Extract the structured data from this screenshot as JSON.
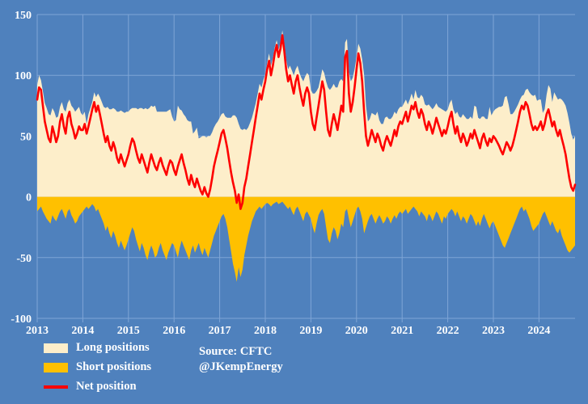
{
  "legend": {
    "items": [
      {
        "label": "Long positions",
        "color": "#fdeeca",
        "type": "area"
      },
      {
        "label": "Short positions",
        "color": "#ffc000",
        "type": "area"
      },
      {
        "label": "Net position",
        "color": "#fe0000",
        "type": "line"
      }
    ]
  },
  "source": {
    "line1": "Source: CFTC",
    "line2": "@JKempEnergy"
  },
  "chart_data": {
    "type": "area",
    "title": "",
    "xlabel": "",
    "ylabel": "",
    "x_start_year": 2013,
    "points_per_year": 24,
    "x_tick_labels": [
      "2013",
      "2014",
      "2015",
      "2016",
      "2017",
      "2018",
      "2019",
      "2020",
      "2021",
      "2022",
      "2023",
      "2024"
    ],
    "ylim": [
      -100,
      150
    ],
    "y_ticks": [
      -100,
      -50,
      0,
      50,
      100,
      150
    ],
    "background_color": "#4f81bd",
    "gridline_color": "#7fa5d6",
    "legend_position": "bottom-left",
    "grid": true,
    "series": [
      {
        "name": "Long positions",
        "color": "#fdeeca",
        "values": [
          92,
          100,
          96,
          87,
          77,
          73,
          68,
          67,
          73,
          70,
          65,
          66,
          74,
          78,
          72,
          70,
          77,
          80,
          75,
          73,
          70,
          72,
          74,
          69,
          67,
          70,
          60,
          68,
          73,
          78,
          86,
          82,
          85,
          82,
          78,
          74,
          73,
          74,
          72,
          72,
          73,
          72,
          70,
          70,
          71,
          70,
          69,
          70,
          70,
          72,
          73,
          73,
          73,
          72,
          73,
          73,
          72,
          73,
          72,
          73,
          75,
          74,
          75,
          70,
          70,
          70,
          70,
          70,
          70,
          71,
          72,
          66,
          62,
          63,
          75,
          72,
          71,
          68,
          66,
          63,
          62,
          62,
          52,
          54,
          57,
          48,
          49,
          50,
          50,
          49,
          50,
          50,
          53,
          57,
          60,
          62,
          65,
          68,
          69,
          66,
          65,
          65,
          65,
          67,
          67,
          65,
          60,
          56,
          55,
          56,
          55,
          57,
          61,
          65,
          71,
          77,
          85,
          93,
          90,
          96,
          101,
          110,
          118,
          108,
          114,
          123,
          129,
          121,
          127,
          137,
          126,
          113,
          105,
          108,
          104,
          100,
          105,
          108,
          102,
          98,
          95,
          99,
          102,
          100,
          88,
          85,
          85,
          87,
          90,
          97,
          105,
          102,
          95,
          90,
          88,
          90,
          93,
          90,
          90,
          95,
          97,
          95,
          127,
          130,
          103,
          95,
          98,
          105,
          115,
          126,
          122,
          113,
          100,
          75,
          62,
          64,
          69,
          68,
          67,
          70,
          63,
          60,
          60,
          65,
          66,
          64,
          64,
          66,
          70,
          68,
          72,
          74,
          74,
          77,
          80,
          76,
          80,
          85,
          80,
          88,
          82,
          81,
          84,
          82,
          76,
          75,
          76,
          74,
          72,
          74,
          77,
          74,
          73,
          72,
          71,
          70,
          72,
          77,
          80,
          72,
          68,
          70,
          66,
          65,
          68,
          66,
          64,
          64,
          66,
          64,
          75,
          74,
          65,
          64,
          66,
          66,
          64,
          64,
          74,
          67,
          70,
          72,
          73,
          74,
          74,
          75,
          82,
          83,
          76,
          68,
          68,
          70,
          73,
          76,
          80,
          83,
          84,
          88,
          89,
          86,
          84,
          83,
          84,
          79,
          80,
          80,
          69,
          72,
          84,
          92,
          89,
          78,
          86,
          83,
          80,
          81,
          80,
          78,
          75,
          69,
          61,
          52,
          47,
          50
        ]
      },
      {
        "name": "Short positions",
        "color": "#ffc000",
        "values": [
          -12,
          -10,
          -8,
          -12,
          -15,
          -18,
          -20,
          -22,
          -15,
          -18,
          -20,
          -16,
          -12,
          -10,
          -14,
          -18,
          -12,
          -10,
          -15,
          -18,
          -22,
          -20,
          -16,
          -14,
          -12,
          -10,
          -8,
          -10,
          -8,
          -6,
          -8,
          -12,
          -10,
          -14,
          -18,
          -22,
          -28,
          -24,
          -30,
          -34,
          -28,
          -32,
          -38,
          -42,
          -36,
          -40,
          -44,
          -40,
          -35,
          -30,
          -25,
          -28,
          -35,
          -40,
          -45,
          -38,
          -42,
          -48,
          -52,
          -45,
          -40,
          -44,
          -50,
          -48,
          -42,
          -38,
          -44,
          -48,
          -52,
          -46,
          -42,
          -38,
          -40,
          -45,
          -50,
          -42,
          -36,
          -40,
          -44,
          -48,
          -52,
          -44,
          -40,
          -46,
          -42,
          -38,
          -44,
          -48,
          -42,
          -46,
          -50,
          -44,
          -38,
          -32,
          -28,
          -24,
          -20,
          -16,
          -14,
          -18,
          -25,
          -35,
          -45,
          -55,
          -62,
          -70,
          -58,
          -66,
          -60,
          -48,
          -40,
          -32,
          -26,
          -20,
          -16,
          -12,
          -10,
          -8,
          -10,
          -8,
          -6,
          -5,
          -6,
          -8,
          -6,
          -5,
          -4,
          -6,
          -5,
          -4,
          -6,
          -8,
          -10,
          -8,
          -12,
          -15,
          -10,
          -8,
          -12,
          -16,
          -20,
          -14,
          -12,
          -15,
          -18,
          -25,
          -30,
          -22,
          -15,
          -12,
          -10,
          -14,
          -25,
          -35,
          -38,
          -30,
          -25,
          -28,
          -35,
          -30,
          -22,
          -25,
          -12,
          -10,
          -18,
          -25,
          -20,
          -15,
          -10,
          -8,
          -12,
          -18,
          -30,
          -25,
          -20,
          -16,
          -14,
          -18,
          -22,
          -18,
          -15,
          -18,
          -22,
          -20,
          -16,
          -18,
          -22,
          -18,
          -15,
          -18,
          -14,
          -12,
          -14,
          -12,
          -10,
          -14,
          -12,
          -10,
          -8,
          -10,
          -12,
          -16,
          -12,
          -14,
          -16,
          -20,
          -14,
          -16,
          -20,
          -16,
          -12,
          -14,
          -18,
          -22,
          -16,
          -18,
          -14,
          -12,
          -10,
          -12,
          -16,
          -12,
          -16,
          -20,
          -16,
          -18,
          -22,
          -18,
          -14,
          -16,
          -20,
          -24,
          -20,
          -24,
          -18,
          -14,
          -18,
          -22,
          -26,
          -22,
          -20,
          -24,
          -28,
          -32,
          -36,
          -40,
          -42,
          -38,
          -34,
          -30,
          -26,
          -22,
          -18,
          -14,
          -10,
          -8,
          -12,
          -10,
          -14,
          -18,
          -24,
          -28,
          -26,
          -24,
          -22,
          -18,
          -14,
          -12,
          -16,
          -20,
          -24,
          -20,
          -24,
          -28,
          -30,
          -26,
          -32,
          -36,
          -40,
          -44,
          -46,
          -44,
          -42,
          -40
        ]
      },
      {
        "name": "Net position",
        "color": "#fe0000",
        "values": [
          80,
          90,
          88,
          75,
          62,
          55,
          48,
          45,
          58,
          52,
          45,
          50,
          62,
          68,
          58,
          52,
          65,
          70,
          60,
          55,
          48,
          52,
          58,
          55,
          55,
          60,
          52,
          58,
          65,
          72,
          78,
          70,
          75,
          68,
          60,
          52,
          45,
          50,
          42,
          38,
          45,
          40,
          32,
          28,
          35,
          30,
          25,
          30,
          35,
          42,
          48,
          45,
          38,
          32,
          28,
          35,
          30,
          25,
          20,
          28,
          35,
          30,
          25,
          22,
          28,
          32,
          26,
          22,
          18,
          25,
          30,
          28,
          22,
          18,
          25,
          30,
          35,
          28,
          22,
          15,
          10,
          18,
          12,
          8,
          15,
          10,
          5,
          2,
          8,
          3,
          0,
          6,
          15,
          25,
          32,
          38,
          45,
          52,
          55,
          48,
          40,
          30,
          20,
          12,
          5,
          -5,
          2,
          -10,
          -5,
          8,
          15,
          25,
          35,
          45,
          55,
          65,
          75,
          85,
          80,
          88,
          95,
          105,
          112,
          100,
          108,
          118,
          125,
          115,
          122,
          133,
          120,
          105,
          95,
          100,
          92,
          85,
          95,
          100,
          90,
          82,
          75,
          85,
          90,
          85,
          70,
          60,
          55,
          65,
          75,
          85,
          95,
          88,
          70,
          55,
          50,
          60,
          68,
          62,
          55,
          65,
          75,
          70,
          115,
          120,
          85,
          70,
          78,
          90,
          105,
          118,
          110,
          95,
          70,
          50,
          42,
          48,
          55,
          50,
          45,
          52,
          48,
          42,
          38,
          45,
          50,
          46,
          42,
          48,
          55,
          50,
          58,
          62,
          60,
          65,
          70,
          62,
          68,
          75,
          72,
          78,
          70,
          65,
          72,
          68,
          60,
          55,
          62,
          58,
          52,
          58,
          65,
          60,
          55,
          50,
          55,
          52,
          58,
          65,
          70,
          60,
          52,
          58,
          50,
          45,
          52,
          48,
          42,
          46,
          52,
          48,
          55,
          50,
          45,
          40,
          48,
          52,
          46,
          42,
          48,
          45,
          50,
          48,
          45,
          42,
          38,
          35,
          40,
          45,
          42,
          38,
          42,
          48,
          55,
          62,
          70,
          75,
          72,
          78,
          75,
          68,
          60,
          55,
          58,
          55,
          58,
          62,
          55,
          60,
          68,
          72,
          65,
          58,
          62,
          55,
          50,
          55,
          48,
          42,
          35,
          25,
          15,
          8,
          5,
          10
        ]
      }
    ]
  }
}
